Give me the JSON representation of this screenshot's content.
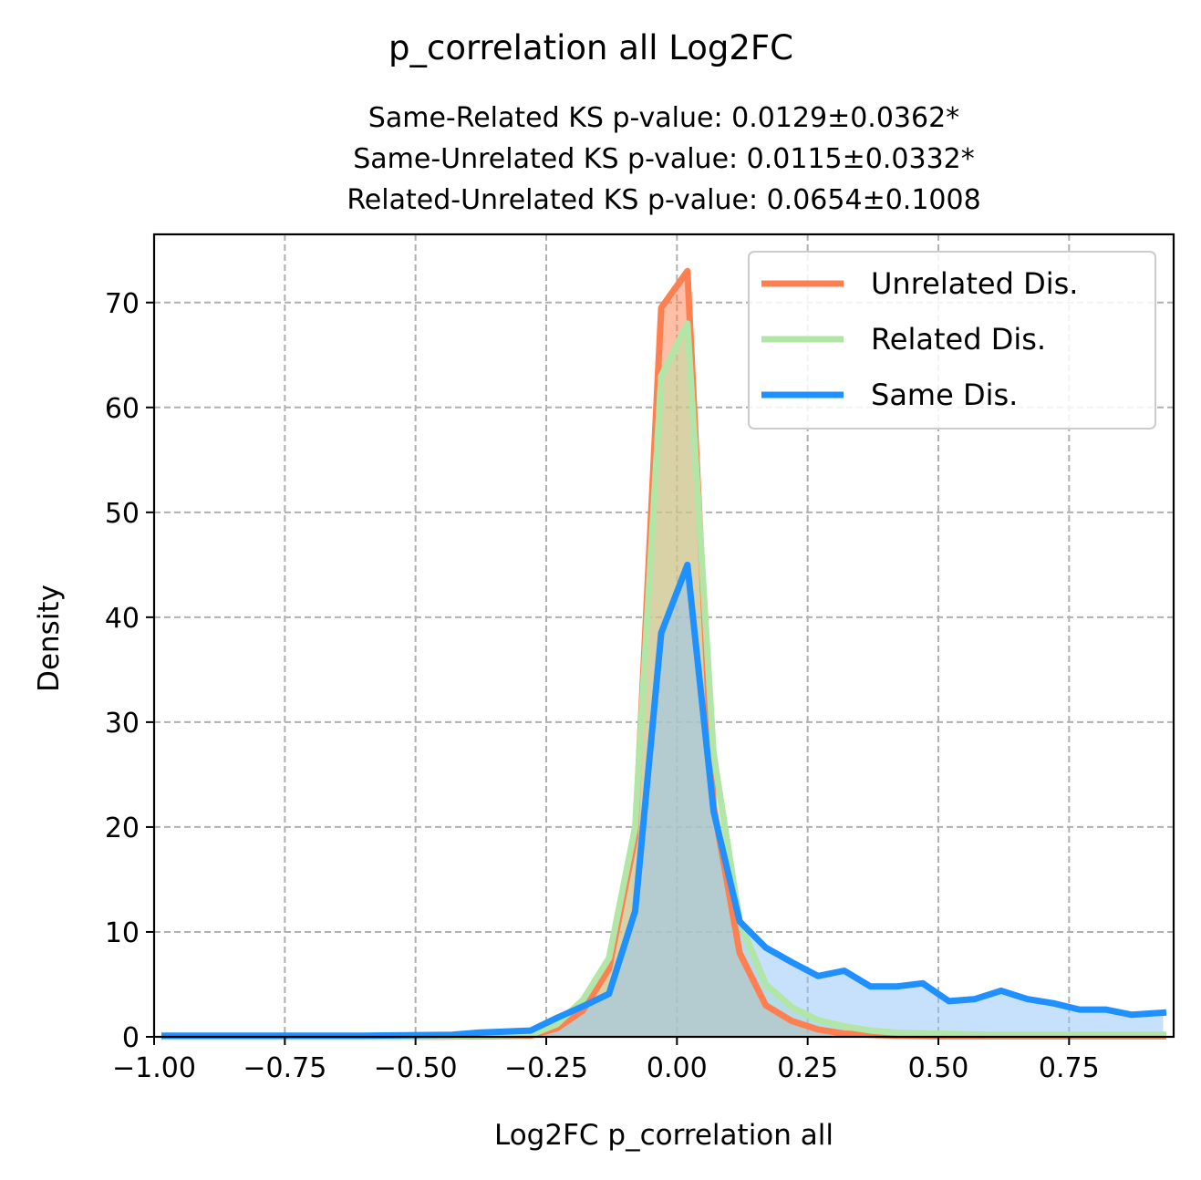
{
  "chart_data": {
    "type": "area",
    "title": "p_correlation all Log2FC",
    "subtitle_lines": [
      "Same-Related KS p-value: 0.0129±0.0362*",
      "Same-Unrelated KS p-value: 0.0115±0.0332*",
      "Related-Unrelated KS p-value: 0.0654±0.1008"
    ],
    "xlabel": "Log2FC p_correlation all",
    "ylabel": "Density",
    "xlim": [
      -1.0,
      0.95
    ],
    "ylim": [
      0,
      76.5
    ],
    "xticks": [
      -1.0,
      -0.75,
      -0.5,
      -0.25,
      0.0,
      0.25,
      0.5,
      0.75
    ],
    "xtick_labels": [
      "−1.00",
      "−0.75",
      "−0.50",
      "−0.25",
      "0.00",
      "0.25",
      "0.50",
      "0.75"
    ],
    "yticks": [
      0,
      10,
      20,
      30,
      40,
      50,
      60,
      70
    ],
    "ytick_labels": [
      "0",
      "10",
      "20",
      "30",
      "40",
      "50",
      "60",
      "70"
    ],
    "grid": true,
    "legend_position": "top-right",
    "series": [
      {
        "name": "Unrelated Dis.",
        "color": "#FF7F50",
        "fill": "#FF7F50",
        "x": [
          -0.98,
          -0.5,
          -0.28,
          -0.23,
          -0.18,
          -0.13,
          -0.08,
          -0.03,
          0.02,
          0.07,
          0.12,
          0.17,
          0.22,
          0.27,
          0.32,
          0.37,
          0.42,
          0.5,
          0.6,
          0.7,
          0.8,
          0.93
        ],
        "values": [
          0,
          0,
          0.1,
          0.8,
          2.5,
          6.5,
          19,
          69.5,
          73,
          22,
          8,
          3,
          1.5,
          0.7,
          0.3,
          0.2,
          0.1,
          0.05,
          0.05,
          0.05,
          0.05,
          0.05
        ]
      },
      {
        "name": "Related Dis.",
        "color": "#B2E6A6",
        "fill": "#B2E6A6",
        "x": [
          -0.98,
          -0.5,
          -0.28,
          -0.23,
          -0.18,
          -0.13,
          -0.08,
          -0.03,
          0.02,
          0.07,
          0.12,
          0.17,
          0.22,
          0.27,
          0.32,
          0.37,
          0.42,
          0.5,
          0.6,
          0.7,
          0.8,
          0.93
        ],
        "values": [
          0,
          0,
          0.2,
          1.2,
          3.5,
          7.5,
          20,
          63,
          68,
          27,
          11,
          5,
          2.8,
          1.6,
          1.0,
          0.6,
          0.4,
          0.3,
          0.2,
          0.2,
          0.2,
          0.2
        ]
      },
      {
        "name": "Same Dis.",
        "color": "#1E90FF",
        "fill": "#8FC3FA",
        "x": [
          -0.98,
          -0.75,
          -0.6,
          -0.43,
          -0.38,
          -0.28,
          -0.23,
          -0.18,
          -0.13,
          -0.08,
          -0.03,
          0.02,
          0.07,
          0.12,
          0.17,
          0.22,
          0.27,
          0.32,
          0.37,
          0.42,
          0.47,
          0.52,
          0.57,
          0.62,
          0.67,
          0.72,
          0.77,
          0.82,
          0.87,
          0.93
        ],
        "values": [
          0.1,
          0.1,
          0.1,
          0.2,
          0.4,
          0.6,
          1.8,
          2.9,
          4.1,
          12,
          38.5,
          45,
          21.5,
          11,
          8.5,
          7.1,
          5.8,
          6.3,
          4.8,
          4.8,
          5.1,
          3.4,
          3.6,
          4.4,
          3.6,
          3.2,
          2.6,
          2.6,
          2.1,
          2.3
        ]
      }
    ]
  }
}
